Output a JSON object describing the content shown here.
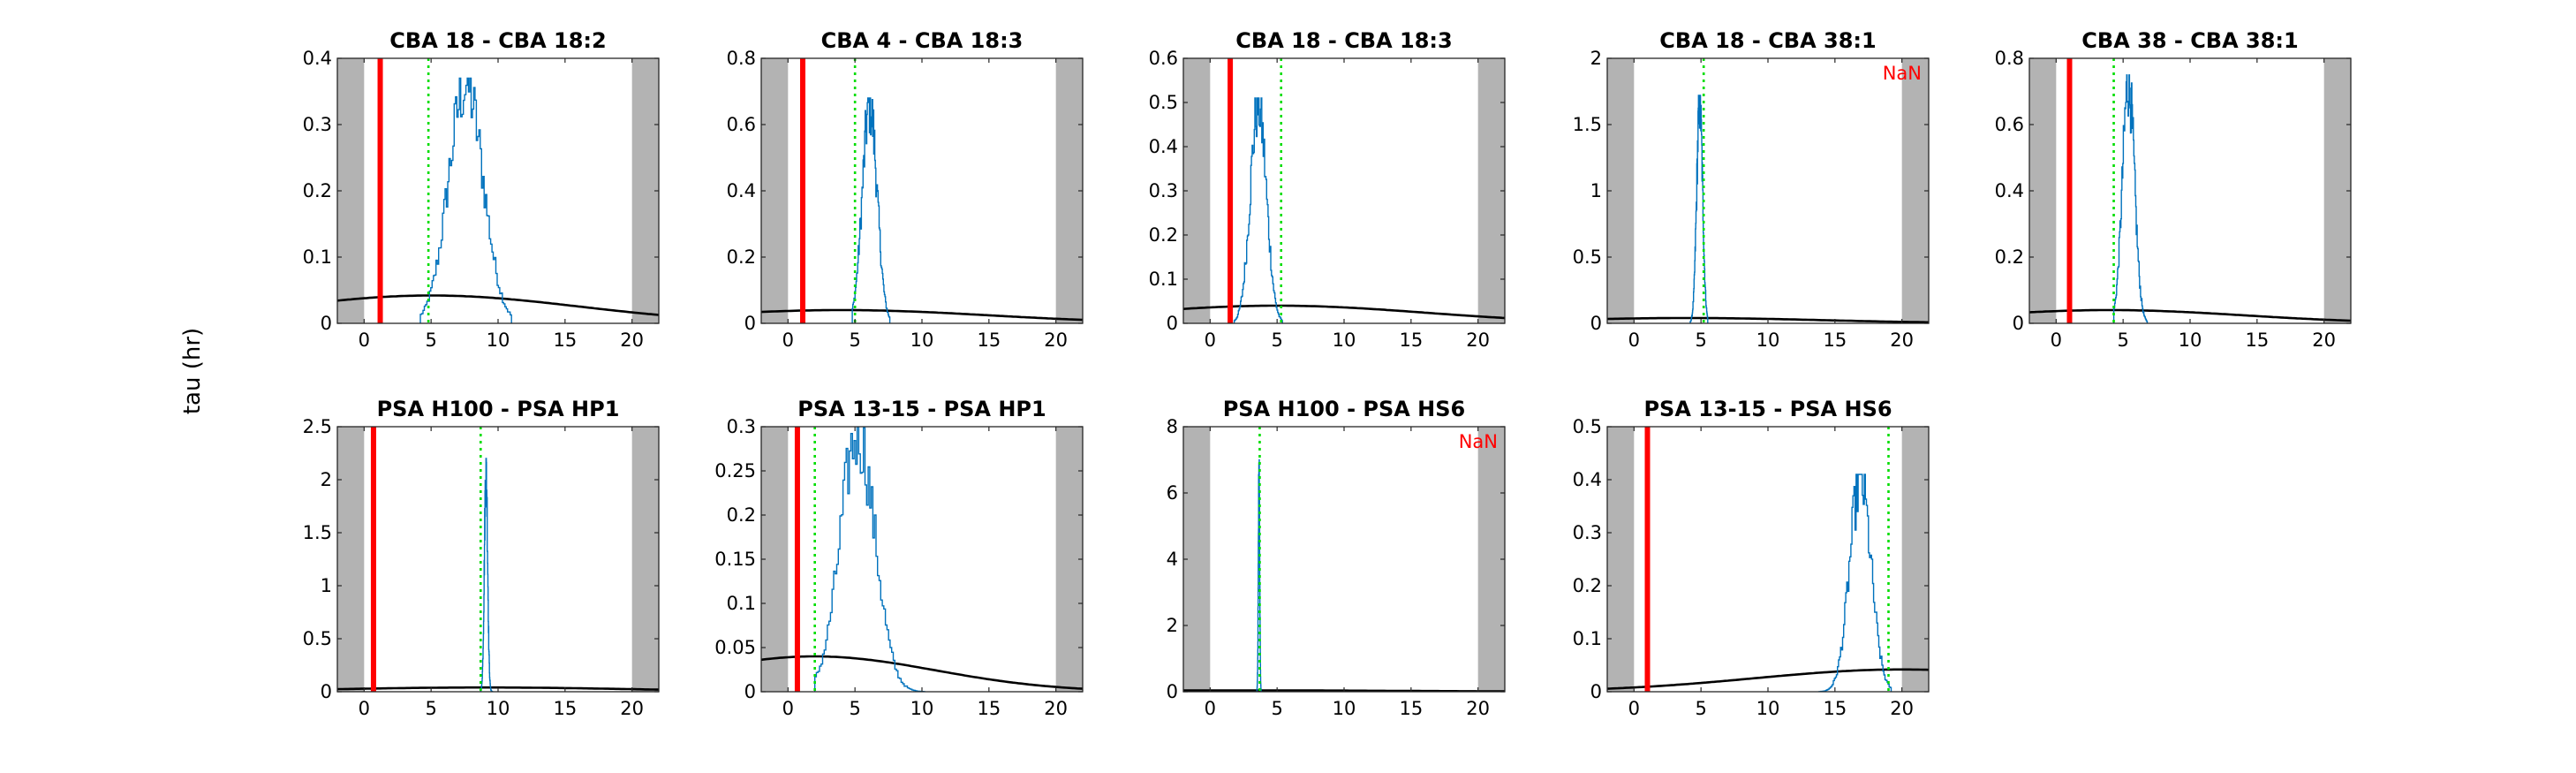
{
  "figure": {
    "ylabel": "tau (hr)"
  },
  "chart_data": [
    {
      "type": "line",
      "title": "CBA 18 - CBA 18:2",
      "xlim": [
        -2,
        22
      ],
      "ylim": [
        0,
        0.4
      ],
      "xticks": [
        0,
        5,
        10,
        15,
        20
      ],
      "yticks": [
        0,
        0.1,
        0.2,
        0.3,
        0.4
      ],
      "shaded_x_ranges": [
        [
          -2,
          0
        ],
        [
          20,
          22
        ]
      ],
      "red_line_x": 1.2,
      "green_dotted_x": 4.8,
      "histogram": {
        "center": 7.6,
        "width": 1.3,
        "peak": 0.37,
        "range": [
          4.2,
          11.0
        ]
      },
      "black_curve": {
        "center": 5.0,
        "sigma": 11.0,
        "peak": 0.042
      },
      "annotation": ""
    },
    {
      "type": "line",
      "title": "CBA 4 - CBA 18:3",
      "xlim": [
        -2,
        22
      ],
      "ylim": [
        0,
        0.8
      ],
      "xticks": [
        0,
        5,
        10,
        15,
        20
      ],
      "yticks": [
        0,
        0.2,
        0.4,
        0.6,
        0.8
      ],
      "shaded_x_ranges": [
        [
          -2,
          0
        ],
        [
          20,
          22
        ]
      ],
      "red_line_x": 1.1,
      "green_dotted_x": 5.0,
      "histogram": {
        "center": 6.1,
        "width": 0.55,
        "peak": 0.68,
        "range": [
          4.8,
          7.6
        ]
      },
      "black_curve": {
        "center": 4.0,
        "sigma": 11.0,
        "peak": 0.04
      },
      "annotation": ""
    },
    {
      "type": "line",
      "title": "CBA 18 - CBA 18:3",
      "xlim": [
        -2,
        22
      ],
      "ylim": [
        0,
        0.6
      ],
      "xticks": [
        0,
        5,
        10,
        15,
        20
      ],
      "yticks": [
        0,
        0.1,
        0.2,
        0.3,
        0.4,
        0.5,
        0.6
      ],
      "shaded_x_ranges": [
        [
          -2,
          0
        ],
        [
          20,
          22
        ]
      ],
      "red_line_x": 1.5,
      "green_dotted_x": 5.3,
      "histogram": {
        "center": 3.6,
        "width": 0.6,
        "peak": 0.51,
        "range": [
          1.8,
          5.4
        ]
      },
      "black_curve": {
        "center": 5.0,
        "sigma": 11.0,
        "peak": 0.04
      },
      "annotation": ""
    },
    {
      "type": "line",
      "title": "CBA 18 - CBA 38:1",
      "xlim": [
        -2,
        22
      ],
      "ylim": [
        0,
        2
      ],
      "xticks": [
        0,
        5,
        10,
        15,
        20
      ],
      "yticks": [
        0,
        0.5,
        1,
        1.5,
        2
      ],
      "shaded_x_ranges": [
        [
          -2,
          0
        ],
        [
          20,
          22
        ]
      ],
      "red_line_x": null,
      "green_dotted_x": 5.2,
      "histogram": {
        "center": 4.9,
        "width": 0.22,
        "peak": 1.72,
        "range": [
          4.2,
          5.5
        ]
      },
      "black_curve": {
        "center": 4.0,
        "sigma": 10.0,
        "peak": 0.04
      },
      "annotation": "NaN"
    },
    {
      "type": "line",
      "title": "CBA 38 - CBA 38:1",
      "xlim": [
        -2,
        22
      ],
      "ylim": [
        0,
        0.8
      ],
      "xticks": [
        0,
        5,
        10,
        15,
        20
      ],
      "yticks": [
        0,
        0.2,
        0.4,
        0.6,
        0.8
      ],
      "shaded_x_ranges": [
        [
          -2,
          0
        ],
        [
          20,
          22
        ]
      ],
      "red_line_x": 1.0,
      "green_dotted_x": 4.3,
      "histogram": {
        "center": 5.4,
        "width": 0.45,
        "peak": 0.75,
        "range": [
          4.3,
          6.8
        ]
      },
      "black_curve": {
        "center": 4.0,
        "sigma": 10.0,
        "peak": 0.04
      },
      "annotation": ""
    },
    {
      "type": "line",
      "title": "PSA H100 - PSA HP1",
      "xlim": [
        -2,
        22
      ],
      "ylim": [
        0,
        2.5
      ],
      "xticks": [
        0,
        5,
        10,
        15,
        20
      ],
      "yticks": [
        0,
        0.5,
        1,
        1.5,
        2,
        2.5
      ],
      "shaded_x_ranges": [
        [
          -2,
          0
        ],
        [
          20,
          22
        ]
      ],
      "red_line_x": 0.7,
      "green_dotted_x": 8.7,
      "histogram": {
        "center": 9.1,
        "width": 0.12,
        "peak": 2.2,
        "range": [
          8.7,
          9.6
        ]
      },
      "black_curve": {
        "center": 9.0,
        "sigma": 11.0,
        "peak": 0.04
      },
      "annotation": ""
    },
    {
      "type": "line",
      "title": "PSA 13-15 - PSA HP1",
      "xlim": [
        -2,
        22
      ],
      "ylim": [
        0,
        0.3
      ],
      "xticks": [
        0,
        5,
        10,
        15,
        20
      ],
      "yticks": [
        0,
        0.05,
        0.1,
        0.15,
        0.2,
        0.25,
        0.3
      ],
      "shaded_x_ranges": [
        [
          -2,
          0
        ],
        [
          20,
          22
        ]
      ],
      "red_line_x": 0.7,
      "green_dotted_x": 2.0,
      "histogram": {
        "center": 5.2,
        "width": 1.3,
        "peak": 0.3,
        "range": [
          2.0,
          10.2
        ]
      },
      "black_curve": {
        "center": 2.0,
        "sigma": 9.0,
        "peak": 0.04
      },
      "annotation": ""
    },
    {
      "type": "line",
      "title": "PSA H100 - PSA HS6",
      "xlim": [
        -2,
        22
      ],
      "ylim": [
        0,
        8
      ],
      "xticks": [
        0,
        5,
        10,
        15,
        20
      ],
      "yticks": [
        0,
        2,
        4,
        6,
        8
      ],
      "shaded_x_ranges": [
        [
          -2,
          0
        ],
        [
          20,
          22
        ]
      ],
      "red_line_x": null,
      "green_dotted_x": 3.7,
      "histogram": {
        "center": 3.65,
        "width": 0.05,
        "peak": 7.0,
        "range": [
          3.5,
          3.8
        ]
      },
      "black_curve": {
        "center": 3.0,
        "sigma": 12.0,
        "peak": 0.04
      },
      "annotation": "NaN"
    },
    {
      "type": "line",
      "title": "PSA 13-15 - PSA HS6",
      "xlim": [
        -2,
        22
      ],
      "ylim": [
        0,
        0.5
      ],
      "xticks": [
        0,
        5,
        10,
        15,
        20
      ],
      "yticks": [
        0,
        0.1,
        0.2,
        0.3,
        0.4,
        0.5
      ],
      "shaded_x_ranges": [
        [
          -2,
          0
        ],
        [
          20,
          22
        ]
      ],
      "red_line_x": 1.0,
      "green_dotted_x": 19.0,
      "histogram": {
        "center": 16.9,
        "width": 0.8,
        "peak": 0.41,
        "range": [
          13.8,
          19.2
        ]
      },
      "black_curve": {
        "center": 20.0,
        "sigma": 11.0,
        "peak": 0.042
      },
      "annotation": ""
    }
  ]
}
